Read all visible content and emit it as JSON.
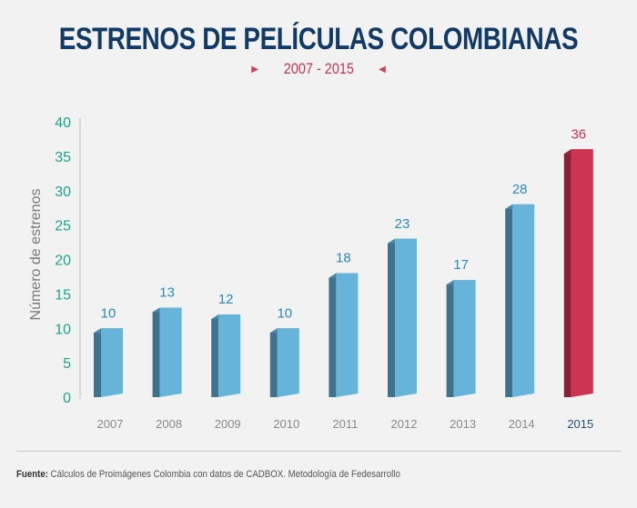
{
  "header": {
    "title": "ESTRENOS DE PELÍCULAS COLOMBIANAS",
    "subtitle": "2007 - 2015"
  },
  "footer": {
    "label": "Fuente:",
    "text": "Cálculos de Proimágenes Colombia con datos de CADBOX. Metodología de Fedesarrollo"
  },
  "colors": {
    "title": "#123a66",
    "accent": "#c9334f",
    "bar_front": "#66b4da",
    "bar_side": "#3e7390",
    "bar_top": "#4a88a8",
    "highlight_front": "#cc3452",
    "highlight_side": "#8f1d33",
    "highlight_top": "#a8243e",
    "tick_color": "#1aa58a",
    "label_color": "#2a8ac0"
  },
  "chart_data": {
    "type": "bar",
    "title": "ESTRENOS DE PELÍCULAS COLOMBIANAS",
    "subtitle": "2007 - 2015",
    "categories": [
      "2007",
      "2008",
      "2009",
      "2010",
      "2011",
      "2012",
      "2013",
      "2014",
      "2015"
    ],
    "values": [
      10,
      13,
      12,
      10,
      18,
      23,
      17,
      28,
      36
    ],
    "highlight_category": "2015",
    "xlabel": "",
    "ylabel": "Número de estrenos",
    "ylim": [
      0,
      40
    ],
    "yticks": [
      0,
      5,
      10,
      15,
      20,
      25,
      30,
      35,
      40
    ],
    "grid": false,
    "data_labels": true
  }
}
